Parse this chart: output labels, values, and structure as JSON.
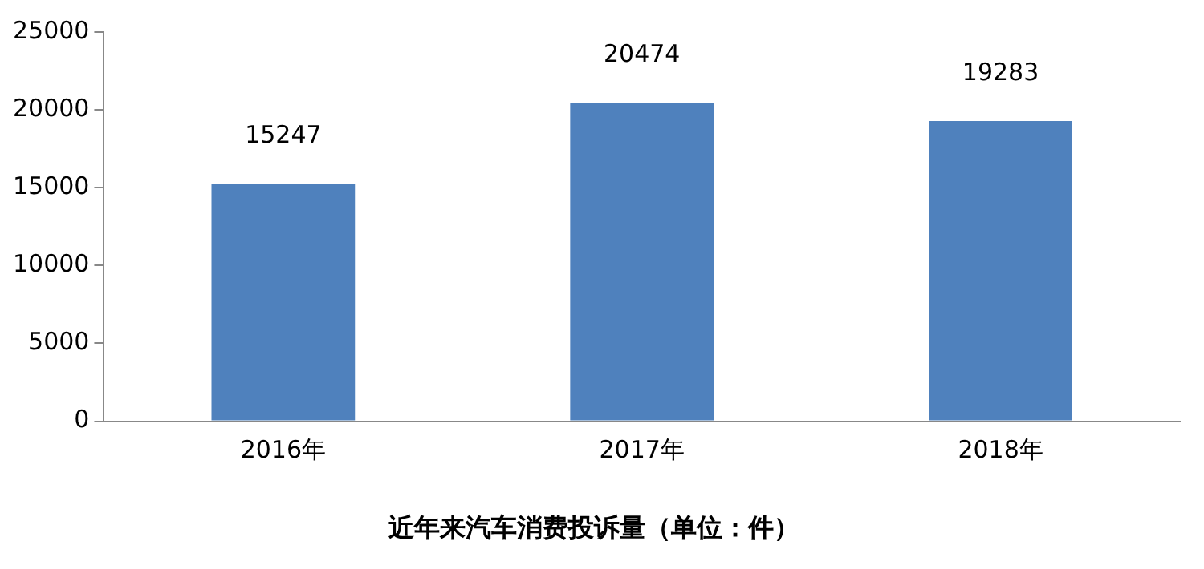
{
  "chart_data": {
    "type": "bar",
    "title": "近年来汽车消费投诉量（单位：件）",
    "categories": [
      "2016年",
      "2017年",
      "2018年"
    ],
    "values": [
      15247,
      20474,
      19283
    ],
    "color": "#4f81bd",
    "ylim": [
      0,
      25000
    ],
    "yticks": [
      0,
      5000,
      10000,
      15000,
      20000,
      25000
    ],
    "grid": false,
    "legend": false,
    "data_labels": true
  }
}
